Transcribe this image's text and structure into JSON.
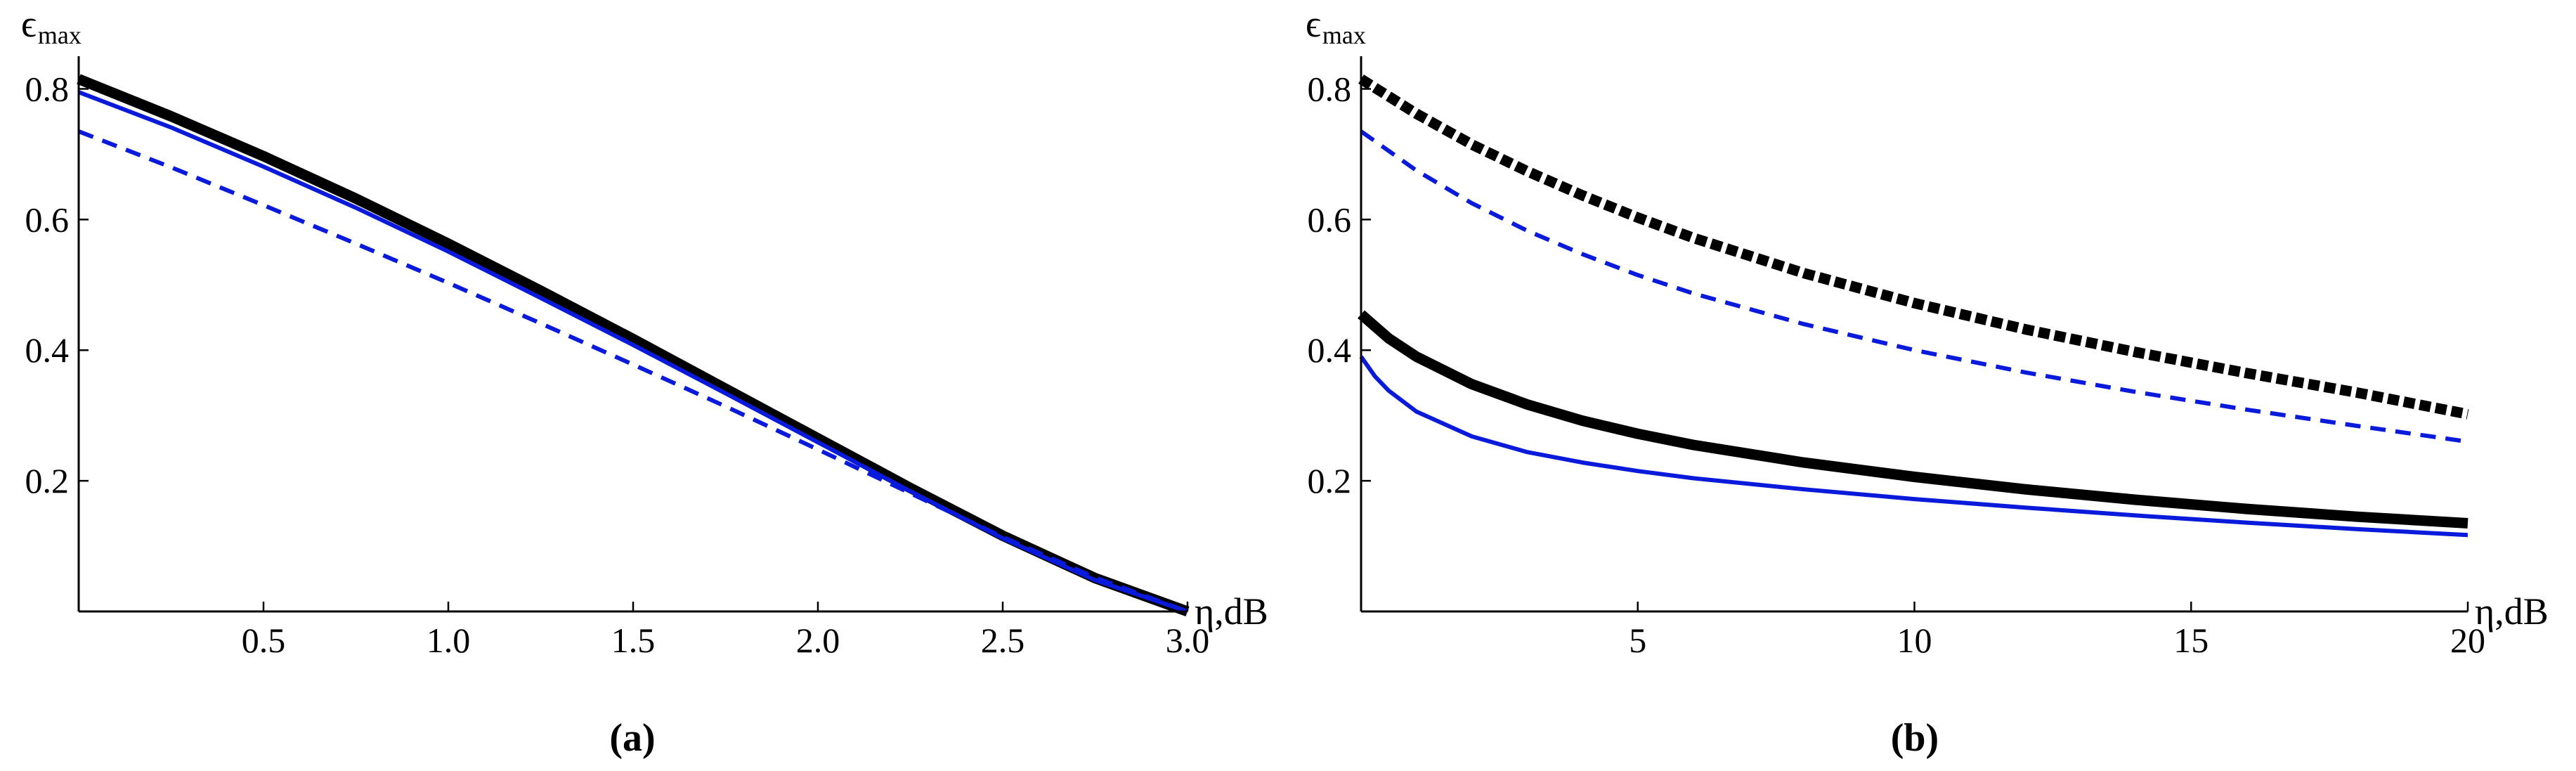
{
  "chart_data": [
    {
      "type": "line",
      "panel_label": "(a)",
      "ylabel_main": "ϵ",
      "ylabel_sub": "max",
      "xlabel": "η,dB",
      "xlim": [
        0,
        3.0
      ],
      "ylim": [
        0,
        0.85
      ],
      "x_ticks": [
        "0.5",
        "1.0",
        "1.5",
        "2.0",
        "2.5",
        "3.0"
      ],
      "x_tick_values": [
        0.5,
        1.0,
        1.5,
        2.0,
        2.5,
        3.0
      ],
      "y_ticks": [
        "0.2",
        "0.4",
        "0.6",
        "0.8"
      ],
      "y_tick_values": [
        0.2,
        0.4,
        0.6,
        0.8
      ],
      "grid": false,
      "series": [
        {
          "color": "#000000",
          "style": "solid",
          "weight": "thick",
          "x": [
            0,
            0.25,
            0.5,
            0.75,
            1.0,
            1.25,
            1.5,
            1.75,
            2.0,
            2.25,
            2.5,
            2.75,
            3.0
          ],
          "y": [
            0.815,
            0.758,
            0.697,
            0.632,
            0.563,
            0.491,
            0.417,
            0.341,
            0.265,
            0.189,
            0.116,
            0.051,
            0.0
          ]
        },
        {
          "color": "#0a1adb",
          "style": "solid",
          "weight": "normal",
          "x": [
            0,
            0.25,
            0.5,
            0.75,
            1.0,
            1.25,
            1.5,
            1.75,
            2.0,
            2.25,
            2.5,
            2.75,
            3.0
          ],
          "y": [
            0.795,
            0.741,
            0.681,
            0.618,
            0.551,
            0.48,
            0.408,
            0.334,
            0.259,
            0.184,
            0.112,
            0.048,
            0.0
          ]
        },
        {
          "color": "#0a1adb",
          "style": "dashed",
          "weight": "normal",
          "x": [
            0,
            0.25,
            0.5,
            0.75,
            1.0,
            1.25,
            1.5,
            1.75,
            2.0,
            2.25,
            2.5,
            2.75,
            3.0
          ],
          "y": [
            0.735,
            0.68,
            0.622,
            0.563,
            0.503,
            0.441,
            0.378,
            0.314,
            0.248,
            0.181,
            0.114,
            0.052,
            0.0
          ]
        }
      ]
    },
    {
      "type": "line",
      "panel_label": "(b)",
      "ylabel_main": "ϵ",
      "ylabel_sub": "max",
      "xlabel": "η,dB",
      "xlim": [
        0,
        20
      ],
      "ylim": [
        0,
        0.85
      ],
      "x_ticks": [
        "5",
        "10",
        "15",
        "20"
      ],
      "x_tick_values": [
        5,
        10,
        15,
        20
      ],
      "y_ticks": [
        "0.2",
        "0.4",
        "0.6",
        "0.8"
      ],
      "y_tick_values": [
        0.2,
        0.4,
        0.6,
        0.8
      ],
      "grid": false,
      "series": [
        {
          "color": "#000000",
          "style": "dashed",
          "weight": "thick",
          "x": [
            0,
            1,
            2,
            3,
            4,
            5,
            6,
            8,
            10,
            12,
            14,
            16,
            18,
            20
          ],
          "y": [
            0.815,
            0.762,
            0.715,
            0.674,
            0.637,
            0.603,
            0.572,
            0.518,
            0.472,
            0.432,
            0.397,
            0.365,
            0.335,
            0.302
          ]
        },
        {
          "color": "#0a1adb",
          "style": "dashed",
          "weight": "normal",
          "x": [
            0,
            1,
            2,
            3,
            4,
            5,
            6,
            8,
            10,
            12,
            14,
            16,
            18,
            20
          ],
          "y": [
            0.735,
            0.675,
            0.625,
            0.583,
            0.547,
            0.515,
            0.487,
            0.44,
            0.4,
            0.366,
            0.336,
            0.309,
            0.284,
            0.26
          ]
        },
        {
          "color": "#000000",
          "style": "solid",
          "weight": "thick",
          "x": [
            0,
            0.5,
            1,
            2,
            3,
            4,
            5,
            6,
            8,
            10,
            12,
            14,
            16,
            18,
            20
          ],
          "y": [
            0.455,
            0.418,
            0.39,
            0.348,
            0.317,
            0.292,
            0.272,
            0.255,
            0.228,
            0.206,
            0.187,
            0.171,
            0.157,
            0.145,
            0.135
          ]
        },
        {
          "color": "#0a1adb",
          "style": "solid",
          "weight": "normal",
          "x": [
            0,
            0.25,
            0.5,
            1,
            2,
            3,
            4,
            5,
            6,
            8,
            10,
            12,
            14,
            16,
            18,
            20
          ],
          "y": [
            0.39,
            0.36,
            0.338,
            0.306,
            0.268,
            0.244,
            0.228,
            0.215,
            0.204,
            0.187,
            0.172,
            0.159,
            0.147,
            0.136,
            0.126,
            0.117
          ]
        }
      ]
    }
  ]
}
